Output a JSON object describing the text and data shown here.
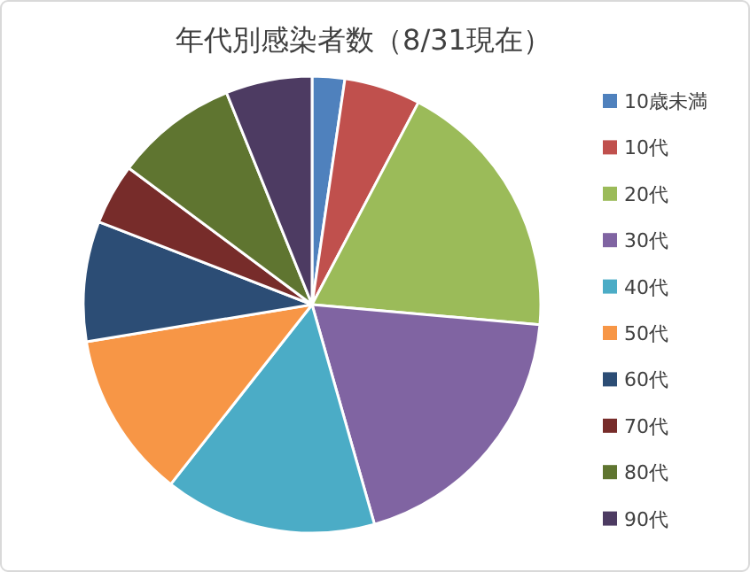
{
  "chart_data": {
    "type": "pie",
    "title": "年代別感染者数（8/31現在）",
    "categories": [
      "10歳未満",
      "10代",
      "20代",
      "30代",
      "40代",
      "50代",
      "60代",
      "70代",
      "80代",
      "90代"
    ],
    "values": [
      2.3,
      5.4,
      18.7,
      19.2,
      15.0,
      11.8,
      8.5,
      4.3,
      8.7,
      6.1
    ],
    "colors": [
      "#4f81bd",
      "#c0504d",
      "#9bbb59",
      "#8064a2",
      "#4bacc6",
      "#f79646",
      "#2c4d75",
      "#772c2a",
      "#5f7530",
      "#4d3b62"
    ],
    "legend": "right"
  }
}
